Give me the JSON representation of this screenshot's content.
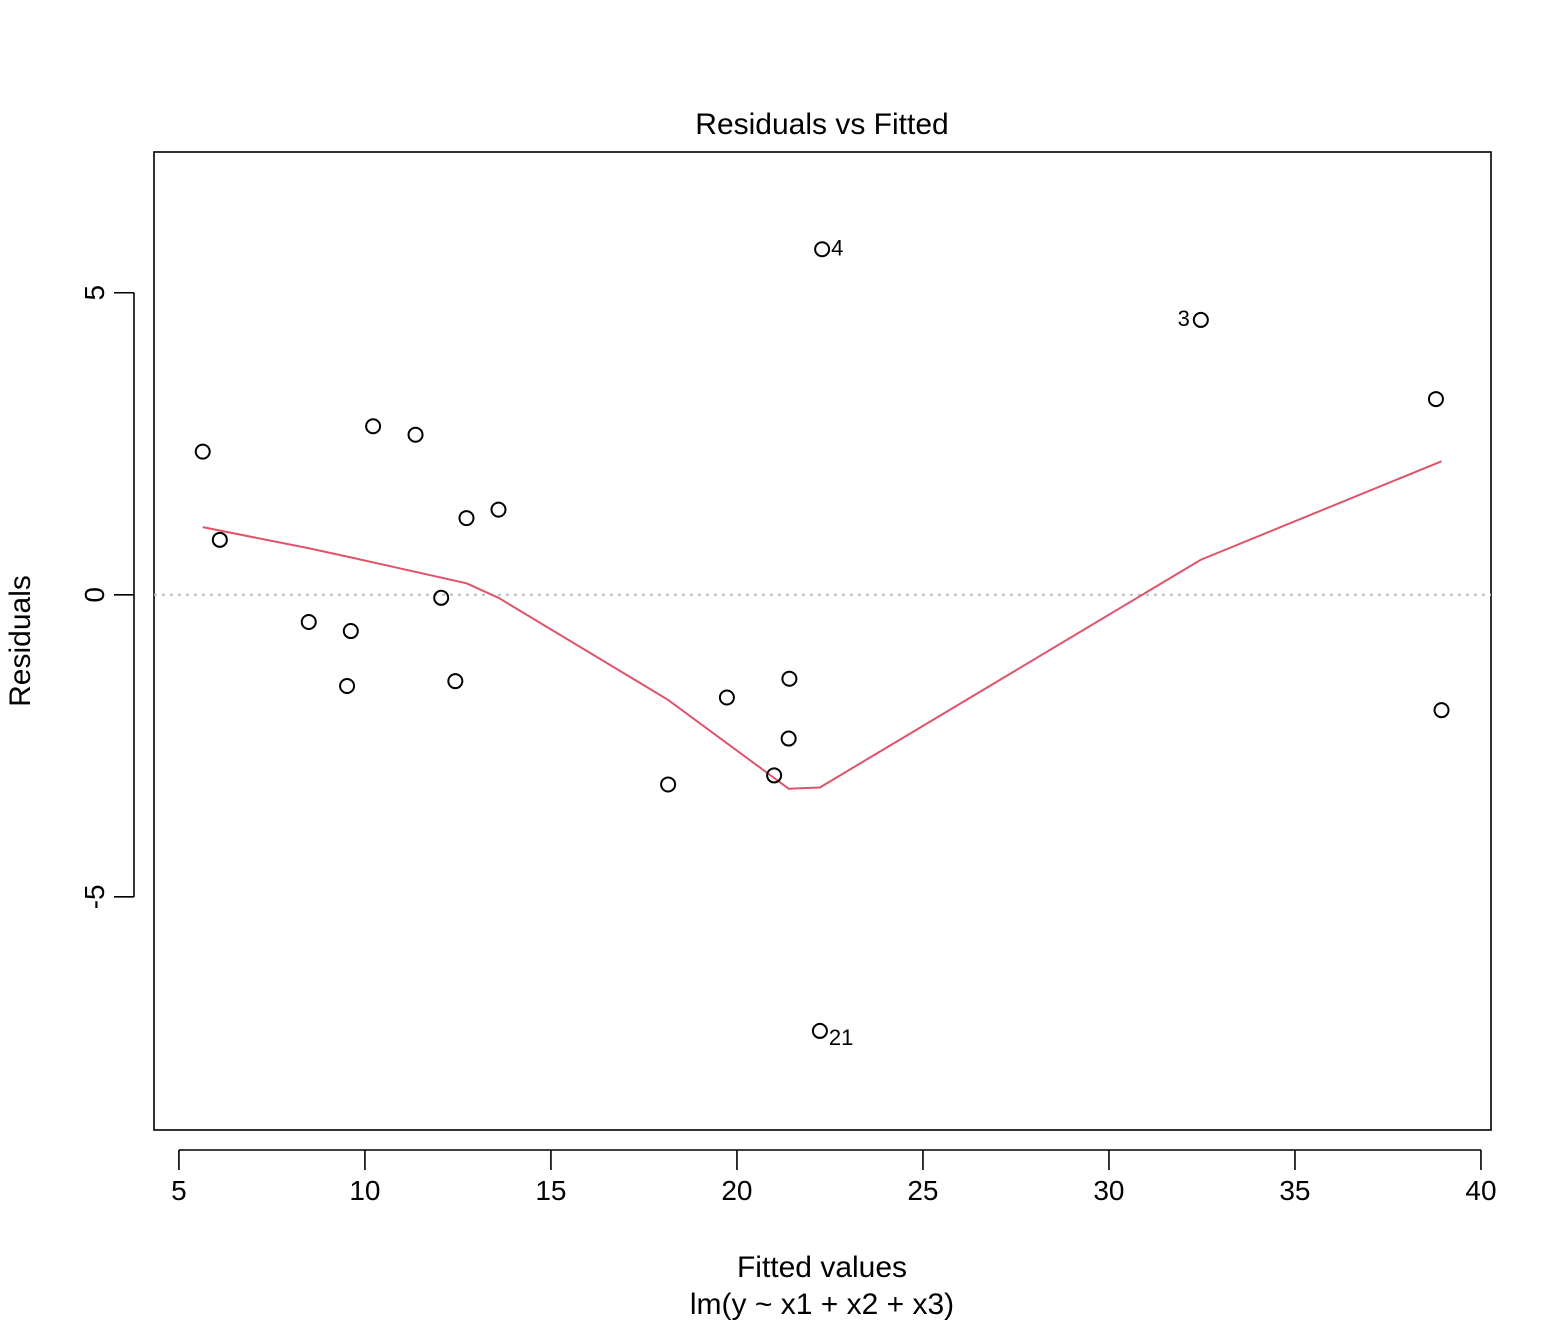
{
  "chart_data": {
    "type": "scatter",
    "title": "Residuals vs Fitted",
    "xlabel": "Fitted values",
    "subtitle": "lm(y ~ x1 + x2 + x3)",
    "ylabel": "Residuals",
    "xlim": [
      4.33,
      40.27
    ],
    "ylim": [
      -8.86,
      7.33
    ],
    "x_ticks": [
      5,
      10,
      15,
      20,
      25,
      30,
      35,
      40
    ],
    "x_tick_labels": [
      "5",
      "10",
      "15",
      "20",
      "25",
      "30",
      "35",
      "40"
    ],
    "y_ticks": [
      -5,
      0,
      5
    ],
    "y_tick_labels": [
      "-5",
      "0",
      "5"
    ],
    "points": [
      {
        "x": 5.64,
        "y": 2.37,
        "label": ""
      },
      {
        "x": 6.1,
        "y": 0.91,
        "label": ""
      },
      {
        "x": 8.49,
        "y": -0.45,
        "label": ""
      },
      {
        "x": 9.52,
        "y": -1.51,
        "label": ""
      },
      {
        "x": 9.62,
        "y": -0.6,
        "label": ""
      },
      {
        "x": 10.22,
        "y": 2.79,
        "label": ""
      },
      {
        "x": 11.36,
        "y": 2.65,
        "label": ""
      },
      {
        "x": 12.05,
        "y": -0.05,
        "label": ""
      },
      {
        "x": 12.43,
        "y": -1.43,
        "label": ""
      },
      {
        "x": 12.73,
        "y": 1.27,
        "label": ""
      },
      {
        "x": 13.59,
        "y": 1.41,
        "label": ""
      },
      {
        "x": 18.15,
        "y": -3.14,
        "label": ""
      },
      {
        "x": 19.73,
        "y": -1.7,
        "label": ""
      },
      {
        "x": 21.0,
        "y": -2.99,
        "label": ""
      },
      {
        "x": 21.39,
        "y": -2.38,
        "label": ""
      },
      {
        "x": 21.41,
        "y": -1.39,
        "label": ""
      },
      {
        "x": 22.23,
        "y": -7.22,
        "label": "21"
      },
      {
        "x": 22.29,
        "y": 5.72,
        "label": "4"
      },
      {
        "x": 32.47,
        "y": 4.55,
        "label": "3"
      },
      {
        "x": 38.79,
        "y": 3.24,
        "label": ""
      },
      {
        "x": 38.94,
        "y": -1.91,
        "label": ""
      }
    ],
    "smooth_line": {
      "color": "#DF536B",
      "x": [
        5.64,
        8.49,
        9.62,
        12.73,
        13.59,
        18.15,
        21.39,
        22.23,
        32.47,
        38.94
      ],
      "y": [
        1.12,
        0.77,
        0.62,
        0.19,
        -0.05,
        -1.74,
        -3.21,
        -3.19,
        0.58,
        2.21
      ]
    },
    "reference_line": {
      "y": 0,
      "color": "#BEBEBE",
      "style": "dotted"
    },
    "grid": false
  }
}
